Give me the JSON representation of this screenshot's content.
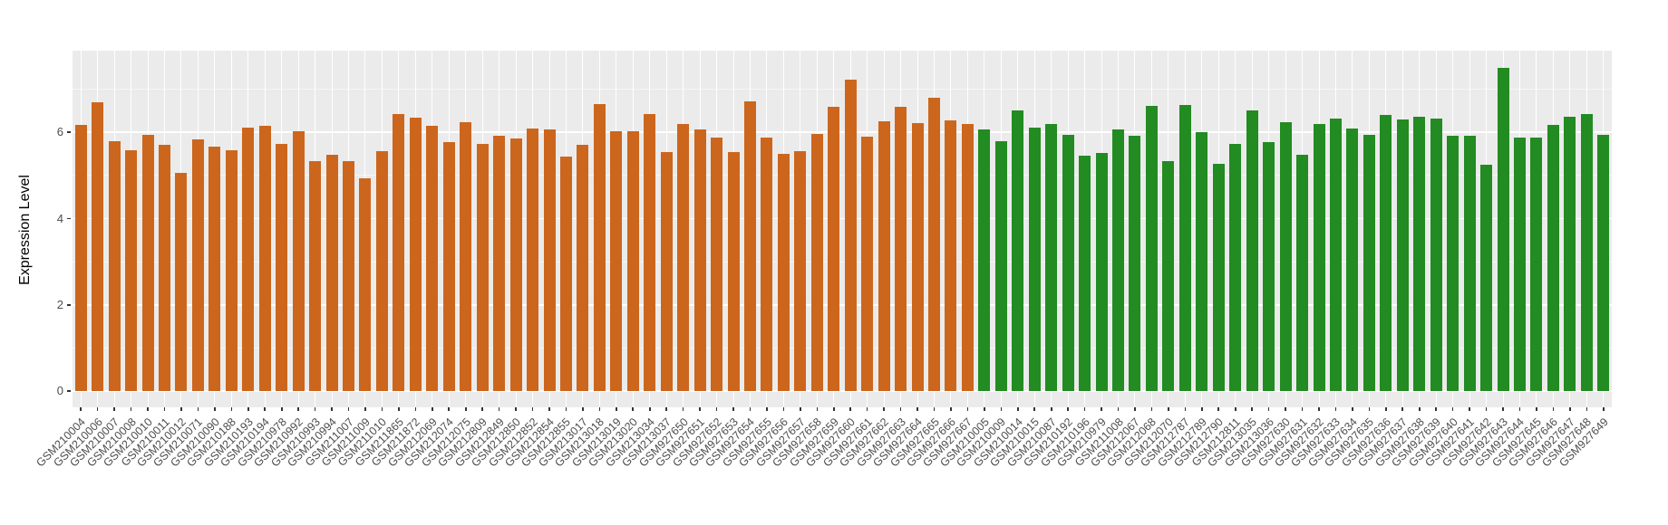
{
  "chart_data": {
    "type": "bar",
    "title": "",
    "xlabel": "",
    "ylabel": "Expression Level",
    "yticks": [
      0,
      2,
      4,
      6
    ],
    "yminorticks": [
      1,
      3,
      5,
      7
    ],
    "ylim": [
      -0.38,
      7.88
    ],
    "grid": "major-white-on-gray-panel",
    "legend": false,
    "panel_background": "#EBEBEB",
    "groups": [
      {
        "name": "orange-group",
        "color": "#CC661D",
        "samples": [
          {
            "id": "GSM210004",
            "value": 6.17
          },
          {
            "id": "GSM210006",
            "value": 6.7
          },
          {
            "id": "GSM210007",
            "value": 5.8
          },
          {
            "id": "GSM210008",
            "value": 5.59
          },
          {
            "id": "GSM210010",
            "value": 5.94
          },
          {
            "id": "GSM210011",
            "value": 5.72
          },
          {
            "id": "GSM210012",
            "value": 5.06
          },
          {
            "id": "GSM210071",
            "value": 5.83
          },
          {
            "id": "GSM210090",
            "value": 5.68
          },
          {
            "id": "GSM210188",
            "value": 5.59
          },
          {
            "id": "GSM210193",
            "value": 6.12
          },
          {
            "id": "GSM210194",
            "value": 6.15
          },
          {
            "id": "GSM210978",
            "value": 5.74
          },
          {
            "id": "GSM210992",
            "value": 6.03
          },
          {
            "id": "GSM210993",
            "value": 5.33
          },
          {
            "id": "GSM210994",
            "value": 5.49
          },
          {
            "id": "GSM211007",
            "value": 5.33
          },
          {
            "id": "GSM211009",
            "value": 4.93
          },
          {
            "id": "GSM211010",
            "value": 5.57
          },
          {
            "id": "GSM211865",
            "value": 6.42
          },
          {
            "id": "GSM211872",
            "value": 6.35
          },
          {
            "id": "GSM212069",
            "value": 6.15
          },
          {
            "id": "GSM212074",
            "value": 5.77
          },
          {
            "id": "GSM212075",
            "value": 6.23
          },
          {
            "id": "GSM212809",
            "value": 5.74
          },
          {
            "id": "GSM212849",
            "value": 5.92
          },
          {
            "id": "GSM212850",
            "value": 5.85
          },
          {
            "id": "GSM212852",
            "value": 6.08
          },
          {
            "id": "GSM212854",
            "value": 6.06
          },
          {
            "id": "GSM212855",
            "value": 5.43
          },
          {
            "id": "GSM213017",
            "value": 5.71
          },
          {
            "id": "GSM213018",
            "value": 6.66
          },
          {
            "id": "GSM213019",
            "value": 6.03
          },
          {
            "id": "GSM213020",
            "value": 6.02
          },
          {
            "id": "GSM213034",
            "value": 6.43
          },
          {
            "id": "GSM213037",
            "value": 5.55
          },
          {
            "id": "GSM927650",
            "value": 6.2
          },
          {
            "id": "GSM927651",
            "value": 6.06
          },
          {
            "id": "GSM927652",
            "value": 5.89
          },
          {
            "id": "GSM927653",
            "value": 5.55
          },
          {
            "id": "GSM927654",
            "value": 6.73
          },
          {
            "id": "GSM927655",
            "value": 5.87
          },
          {
            "id": "GSM927656",
            "value": 5.5
          },
          {
            "id": "GSM927657",
            "value": 5.57
          },
          {
            "id": "GSM927658",
            "value": 5.97
          },
          {
            "id": "GSM927659",
            "value": 6.6
          },
          {
            "id": "GSM927660",
            "value": 7.23
          },
          {
            "id": "GSM927661",
            "value": 5.9
          },
          {
            "id": "GSM927662",
            "value": 6.26
          },
          {
            "id": "GSM927663",
            "value": 6.6
          },
          {
            "id": "GSM927664",
            "value": 6.22
          },
          {
            "id": "GSM927665",
            "value": 6.8
          },
          {
            "id": "GSM927666",
            "value": 6.28
          },
          {
            "id": "GSM927667",
            "value": 6.2
          }
        ]
      },
      {
        "name": "green-group",
        "color": "#228B22",
        "samples": [
          {
            "id": "GSM210005",
            "value": 6.06
          },
          {
            "id": "GSM210009",
            "value": 5.8
          },
          {
            "id": "GSM210014",
            "value": 6.51
          },
          {
            "id": "GSM210015",
            "value": 6.12
          },
          {
            "id": "GSM210087",
            "value": 6.2
          },
          {
            "id": "GSM210192",
            "value": 5.94
          },
          {
            "id": "GSM210196",
            "value": 5.47
          },
          {
            "id": "GSM210979",
            "value": 5.53
          },
          {
            "id": "GSM211008",
            "value": 6.06
          },
          {
            "id": "GSM212067",
            "value": 5.92
          },
          {
            "id": "GSM212068",
            "value": 6.61
          },
          {
            "id": "GSM212070",
            "value": 5.34
          },
          {
            "id": "GSM212787",
            "value": 6.63
          },
          {
            "id": "GSM212789",
            "value": 6.01
          },
          {
            "id": "GSM212790",
            "value": 5.27
          },
          {
            "id": "GSM212811",
            "value": 5.73
          },
          {
            "id": "GSM213035",
            "value": 6.5
          },
          {
            "id": "GSM213036",
            "value": 5.78
          },
          {
            "id": "GSM927630",
            "value": 6.23
          },
          {
            "id": "GSM927631",
            "value": 5.49
          },
          {
            "id": "GSM927632",
            "value": 6.2
          },
          {
            "id": "GSM927633",
            "value": 6.32
          },
          {
            "id": "GSM927634",
            "value": 6.09
          },
          {
            "id": "GSM927635",
            "value": 5.94
          },
          {
            "id": "GSM927636",
            "value": 6.41
          },
          {
            "id": "GSM927637",
            "value": 6.3
          },
          {
            "id": "GSM927638",
            "value": 6.36
          },
          {
            "id": "GSM927639",
            "value": 6.32
          },
          {
            "id": "GSM927640",
            "value": 5.92
          },
          {
            "id": "GSM927641",
            "value": 5.92
          },
          {
            "id": "GSM927642",
            "value": 5.26
          },
          {
            "id": "GSM927643",
            "value": 7.5
          },
          {
            "id": "GSM927644",
            "value": 5.87
          },
          {
            "id": "GSM927645",
            "value": 5.87
          },
          {
            "id": "GSM927646",
            "value": 6.18
          },
          {
            "id": "GSM927647",
            "value": 6.37
          },
          {
            "id": "GSM927648",
            "value": 6.43
          },
          {
            "id": "GSM927649",
            "value": 5.94
          }
        ]
      }
    ]
  }
}
